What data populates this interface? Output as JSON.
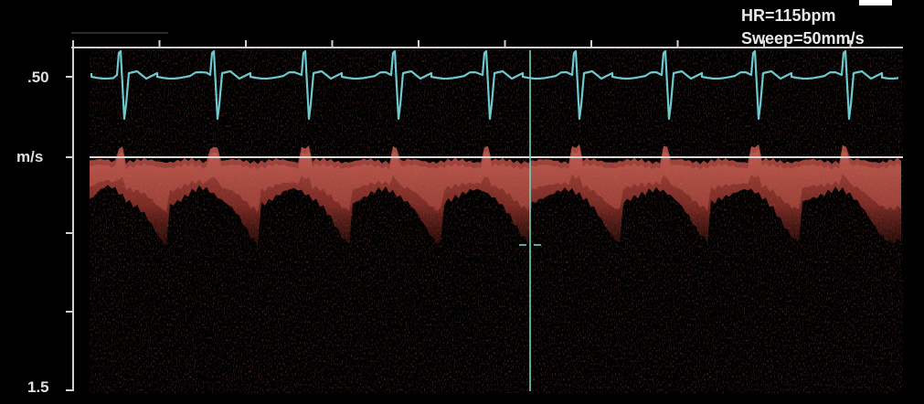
{
  "header": {
    "heart_rate": "HR=115bpm",
    "sweep": "Sweep=50mm/s"
  },
  "scale": {
    "top_label": ".50",
    "unit_label": "m/s",
    "bottom_label": "1.5"
  },
  "colors": {
    "background": "#000000",
    "ecg_trace": "#6ec9cf",
    "doppler_signal": "#c84a3c",
    "baseline": "#d8d8d8",
    "cursor": "#6fd3bf"
  },
  "icons": [
    "scale-ticks",
    "baseline-marker",
    "measurement-cursor"
  ]
}
